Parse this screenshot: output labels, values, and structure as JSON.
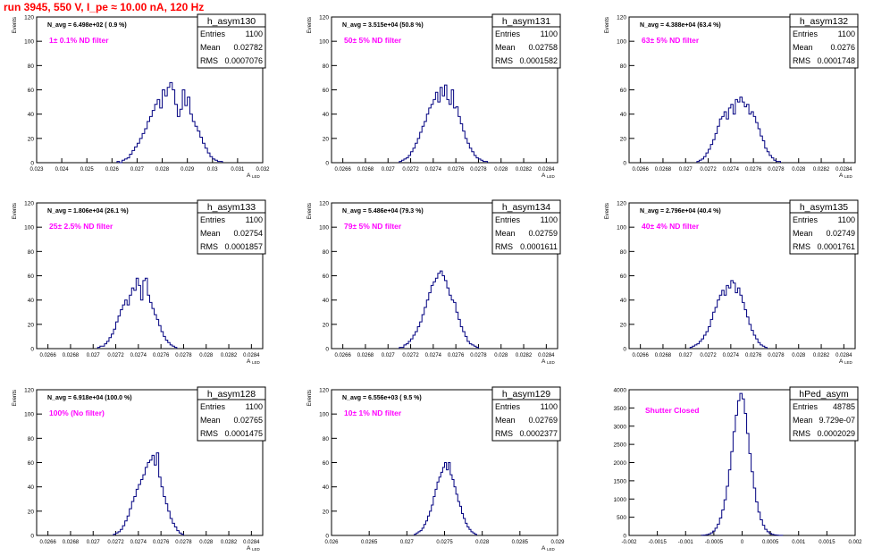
{
  "header": {
    "title": "run 3945,   550 V, I_pe ≈ 10.00 nA, 120 Hz",
    "title_color": "#ff0000"
  },
  "colors": {
    "histogram": "#000080",
    "magenta": "#ff00ff",
    "frame": "#000000"
  },
  "stats_labels": {
    "entries": "Entries",
    "mean": "Mean",
    "rms": "RMS"
  },
  "chart_data": [
    {
      "type": "bar",
      "name": "h_asym130",
      "xlabel": "A_LED",
      "ylabel": "Events",
      "navg_label": "N_avg = 6.498e+02 ( 0.9 %)",
      "note": "1± 0.1% ND filter",
      "entries": "1100",
      "mean": "0.02782",
      "rms": "0.0007076",
      "xlim": [
        0.023,
        0.032
      ],
      "ylim": [
        0,
        120
      ],
      "xticks": [
        0.023,
        0.024,
        0.025,
        0.026,
        0.027,
        0.028,
        0.029,
        0.03,
        0.031,
        0.032
      ],
      "xticklabels": [
        "0.023",
        "0.024",
        "0.025",
        "0.026",
        "0.027",
        "0.028",
        "0.029",
        "0.03",
        "0.031",
        "0.032"
      ],
      "yticks": [
        0,
        20,
        40,
        60,
        80,
        100,
        120
      ],
      "bins": {
        "start": 0.0262,
        "width": 0.0001,
        "values": [
          1,
          0,
          2,
          3,
          4,
          7,
          10,
          13,
          16,
          20,
          24,
          28,
          34,
          38,
          43,
          48,
          52,
          45,
          60,
          55,
          62,
          66,
          60,
          48,
          38,
          44,
          60,
          47,
          54,
          40,
          34,
          30,
          26,
          21,
          16,
          12,
          8,
          5,
          3,
          2,
          1,
          1
        ]
      }
    },
    {
      "type": "bar",
      "name": "h_asym131",
      "xlabel": "A_LED",
      "ylabel": "Events",
      "navg_label": "N_avg = 3.515e+04 (50.8 %)",
      "note": "50± 5% ND filter",
      "entries": "1100",
      "mean": "0.02758",
      "rms": "0.0001582",
      "xlim": [
        0.0265,
        0.0285
      ],
      "ylim": [
        0,
        120
      ],
      "xticks": [
        0.0266,
        0.0268,
        0.027,
        0.0272,
        0.0274,
        0.0276,
        0.0278,
        0.028,
        0.0282,
        0.0284
      ],
      "xticklabels": [
        "0.0266",
        "0.0268",
        "0.027",
        "0.0272",
        "0.0274",
        "0.0276",
        "0.0278",
        "0.028",
        "0.0282",
        "0.0284"
      ],
      "yticks": [
        0,
        20,
        40,
        60,
        80,
        100,
        120
      ],
      "bins": {
        "start": 0.0271,
        "width": 2e-05,
        "values": [
          1,
          2,
          3,
          4,
          6,
          9,
          12,
          16,
          20,
          25,
          30,
          34,
          40,
          45,
          48,
          52,
          58,
          50,
          62,
          55,
          64,
          52,
          48,
          60,
          45,
          46,
          38,
          32,
          26,
          20,
          16,
          12,
          9,
          6,
          4,
          3,
          2,
          1,
          1
        ]
      }
    },
    {
      "type": "bar",
      "name": "h_asym132",
      "xlabel": "A_LED",
      "ylabel": "Events",
      "navg_label": "N_avg = 4.388e+04 (63.4 %)",
      "note": "63± 5% ND filter",
      "entries": "1100",
      "mean": "0.0276",
      "rms": "0.0001748",
      "xlim": [
        0.0265,
        0.0285
      ],
      "ylim": [
        0,
        120
      ],
      "xticks": [
        0.0266,
        0.0268,
        0.027,
        0.0272,
        0.0274,
        0.0276,
        0.0278,
        0.028,
        0.0282,
        0.0284
      ],
      "xticklabels": [
        "0.0266",
        "0.0268",
        "0.027",
        "0.0272",
        "0.0274",
        "0.0276",
        "0.0278",
        "0.028",
        "0.0282",
        "0.0284"
      ],
      "yticks": [
        0,
        20,
        40,
        60,
        80,
        100,
        120
      ],
      "bins": {
        "start": 0.0271,
        "width": 2e-05,
        "values": [
          1,
          2,
          3,
          5,
          8,
          11,
          15,
          19,
          24,
          30,
          36,
          38,
          42,
          36,
          45,
          48,
          40,
          52,
          50,
          54,
          50,
          46,
          48,
          40,
          42,
          38,
          33,
          28,
          22,
          18,
          12,
          9,
          6,
          4,
          2,
          1,
          1
        ]
      }
    },
    {
      "type": "bar",
      "name": "h_asym133",
      "xlabel": "A_LED",
      "ylabel": "Events",
      "navg_label": "N_avg = 1.806e+04 (26.1 %)",
      "note": "25± 2.5% ND filter",
      "entries": "1100",
      "mean": "0.02754",
      "rms": "0.0001857",
      "xlim": [
        0.0265,
        0.0285
      ],
      "ylim": [
        0,
        120
      ],
      "xticks": [
        0.0266,
        0.0268,
        0.027,
        0.0272,
        0.0274,
        0.0276,
        0.0278,
        0.028,
        0.0282,
        0.0284
      ],
      "xticklabels": [
        "0.0266",
        "0.0268",
        "0.027",
        "0.0272",
        "0.0274",
        "0.0276",
        "0.0278",
        "0.028",
        "0.0282",
        "0.0284"
      ],
      "yticks": [
        0,
        20,
        40,
        60,
        80,
        100,
        120
      ],
      "bins": {
        "start": 0.02704,
        "width": 2e-05,
        "values": [
          1,
          2,
          2,
          4,
          6,
          9,
          12,
          16,
          22,
          27,
          32,
          36,
          40,
          36,
          44,
          50,
          48,
          58,
          52,
          40,
          56,
          58,
          44,
          38,
          33,
          28,
          24,
          19,
          14,
          10,
          7,
          5,
          3,
          2,
          1
        ]
      }
    },
    {
      "type": "bar",
      "name": "h_asym134",
      "xlabel": "A_LED",
      "ylabel": "Events",
      "navg_label": "N_avg = 5.486e+04 (79.3 %)",
      "note": "79± 5% ND filter",
      "entries": "1100",
      "mean": "0.02759",
      "rms": "0.0001611",
      "xlim": [
        0.0265,
        0.0285
      ],
      "ylim": [
        0,
        120
      ],
      "xticks": [
        0.0266,
        0.0268,
        0.027,
        0.0272,
        0.0274,
        0.0276,
        0.0278,
        0.028,
        0.0282,
        0.0284
      ],
      "xticklabels": [
        "0.0266",
        "0.0268",
        "0.027",
        "0.0272",
        "0.0274",
        "0.0276",
        "0.0278",
        "0.028",
        "0.0282",
        "0.0284"
      ],
      "yticks": [
        0,
        20,
        40,
        60,
        80,
        100,
        120
      ],
      "bins": {
        "start": 0.0271,
        "width": 2e-05,
        "values": [
          1,
          1,
          3,
          4,
          6,
          8,
          11,
          14,
          18,
          22,
          28,
          34,
          40,
          46,
          52,
          55,
          58,
          62,
          64,
          60,
          56,
          50,
          44,
          40,
          38,
          30,
          24,
          18,
          14,
          10,
          6,
          4,
          3,
          2,
          1
        ]
      }
    },
    {
      "type": "bar",
      "name": "h_asym135",
      "xlabel": "A_LED",
      "ylabel": "Events",
      "navg_label": "N_avg = 2.796e+04 (40.4 %)",
      "note": "40± 4% ND filter",
      "entries": "1100",
      "mean": "0.02749",
      "rms": "0.0001761",
      "xlim": [
        0.0265,
        0.0285
      ],
      "ylim": [
        0,
        120
      ],
      "xticks": [
        0.0266,
        0.0268,
        0.027,
        0.0272,
        0.0274,
        0.0276,
        0.0278,
        0.028,
        0.0282,
        0.0284
      ],
      "xticklabels": [
        "0.0266",
        "0.0268",
        "0.027",
        "0.0272",
        "0.0274",
        "0.0276",
        "0.0278",
        "0.028",
        "0.0282",
        "0.0284"
      ],
      "yticks": [
        0,
        20,
        40,
        60,
        80,
        100,
        120
      ],
      "bins": {
        "start": 0.02704,
        "width": 2e-05,
        "values": [
          1,
          2,
          3,
          4,
          6,
          8,
          11,
          14,
          18,
          24,
          30,
          34,
          40,
          44,
          48,
          44,
          52,
          50,
          56,
          54,
          46,
          50,
          44,
          38,
          32,
          26,
          20,
          15,
          11,
          8,
          5,
          3,
          2,
          1
        ]
      }
    },
    {
      "type": "bar",
      "name": "h_asym128",
      "xlabel": "A_LED",
      "ylabel": "Events",
      "navg_label": "N_avg = 6.918e+04 (100.0 %)",
      "note": "100% (No filter)",
      "entries": "1100",
      "mean": "0.02765",
      "rms": "0.0001475",
      "xlim": [
        0.0265,
        0.0285
      ],
      "ylim": [
        0,
        120
      ],
      "xticks": [
        0.0266,
        0.0268,
        0.027,
        0.0272,
        0.0274,
        0.0276,
        0.0278,
        0.028,
        0.0282,
        0.0284
      ],
      "xticklabels": [
        "0.0266",
        "0.0268",
        "0.027",
        "0.0272",
        "0.0274",
        "0.0276",
        "0.0278",
        "0.028",
        "0.0282",
        "0.0284"
      ],
      "yticks": [
        0,
        20,
        40,
        60,
        80,
        100,
        120
      ],
      "bins": {
        "start": 0.02718,
        "width": 2e-05,
        "values": [
          1,
          2,
          3,
          5,
          8,
          12,
          16,
          22,
          28,
          32,
          38,
          42,
          46,
          50,
          56,
          60,
          62,
          66,
          58,
          68,
          48,
          40,
          32,
          26,
          20,
          14,
          10,
          7,
          4,
          2,
          1
        ]
      }
    },
    {
      "type": "bar",
      "name": "h_asym129",
      "xlabel": "A_LED",
      "ylabel": "Events",
      "navg_label": "N_avg = 6.556e+03 ( 9.5 %)",
      "note": "10± 1% ND filter",
      "entries": "1100",
      "mean": "0.02769",
      "rms": "0.0002377",
      "xlim": [
        0.026,
        0.029
      ],
      "ylim": [
        0,
        120
      ],
      "xticks": [
        0.026,
        0.0265,
        0.027,
        0.0275,
        0.028,
        0.0285,
        0.029
      ],
      "xticklabels": [
        "0.026",
        "0.0265",
        "0.027",
        "0.0275",
        "0.028",
        "0.0285",
        "0.029"
      ],
      "yticks": [
        0,
        20,
        40,
        60,
        80,
        100,
        120
      ],
      "bins": {
        "start": 0.0271,
        "width": 2.5e-05,
        "values": [
          1,
          2,
          3,
          4,
          6,
          9,
          12,
          16,
          20,
          25,
          32,
          38,
          44,
          48,
          52,
          56,
          60,
          54,
          60,
          50,
          46,
          40,
          34,
          28,
          24,
          18,
          14,
          10,
          7,
          5,
          3,
          2,
          1
        ]
      }
    },
    {
      "type": "bar",
      "name": "hPed_asym",
      "xlabel": "",
      "ylabel": "",
      "navg_label": "",
      "note": "Shutter Closed",
      "entries": "48785",
      "mean": "9.729e-07",
      "rms": "0.0002029",
      "xlim": [
        -0.002,
        0.002
      ],
      "ylim": [
        0,
        4000
      ],
      "xticks": [
        -0.002,
        -0.0015,
        -0.001,
        -0.0005,
        0,
        0.0005,
        0.001,
        0.0015,
        0.002
      ],
      "xticklabels": [
        "-0.002",
        "-0.0015",
        "-0.001",
        "-0.0005",
        "0",
        "0.0005",
        "0.001",
        "0.0015",
        "0.002"
      ],
      "yticks": [
        0,
        500,
        1000,
        1500,
        2000,
        2500,
        3000,
        3500,
        4000
      ],
      "bins": {
        "start": -0.00072,
        "width": 4e-05,
        "values": [
          5,
          10,
          20,
          40,
          70,
          120,
          200,
          310,
          480,
          700,
          980,
          1350,
          1800,
          2300,
          2850,
          3300,
          3700,
          3900,
          3750,
          3350,
          2800,
          2250,
          1750,
          1300,
          920,
          640,
          430,
          280,
          170,
          100,
          55,
          30,
          15,
          8,
          4,
          2
        ]
      }
    }
  ]
}
